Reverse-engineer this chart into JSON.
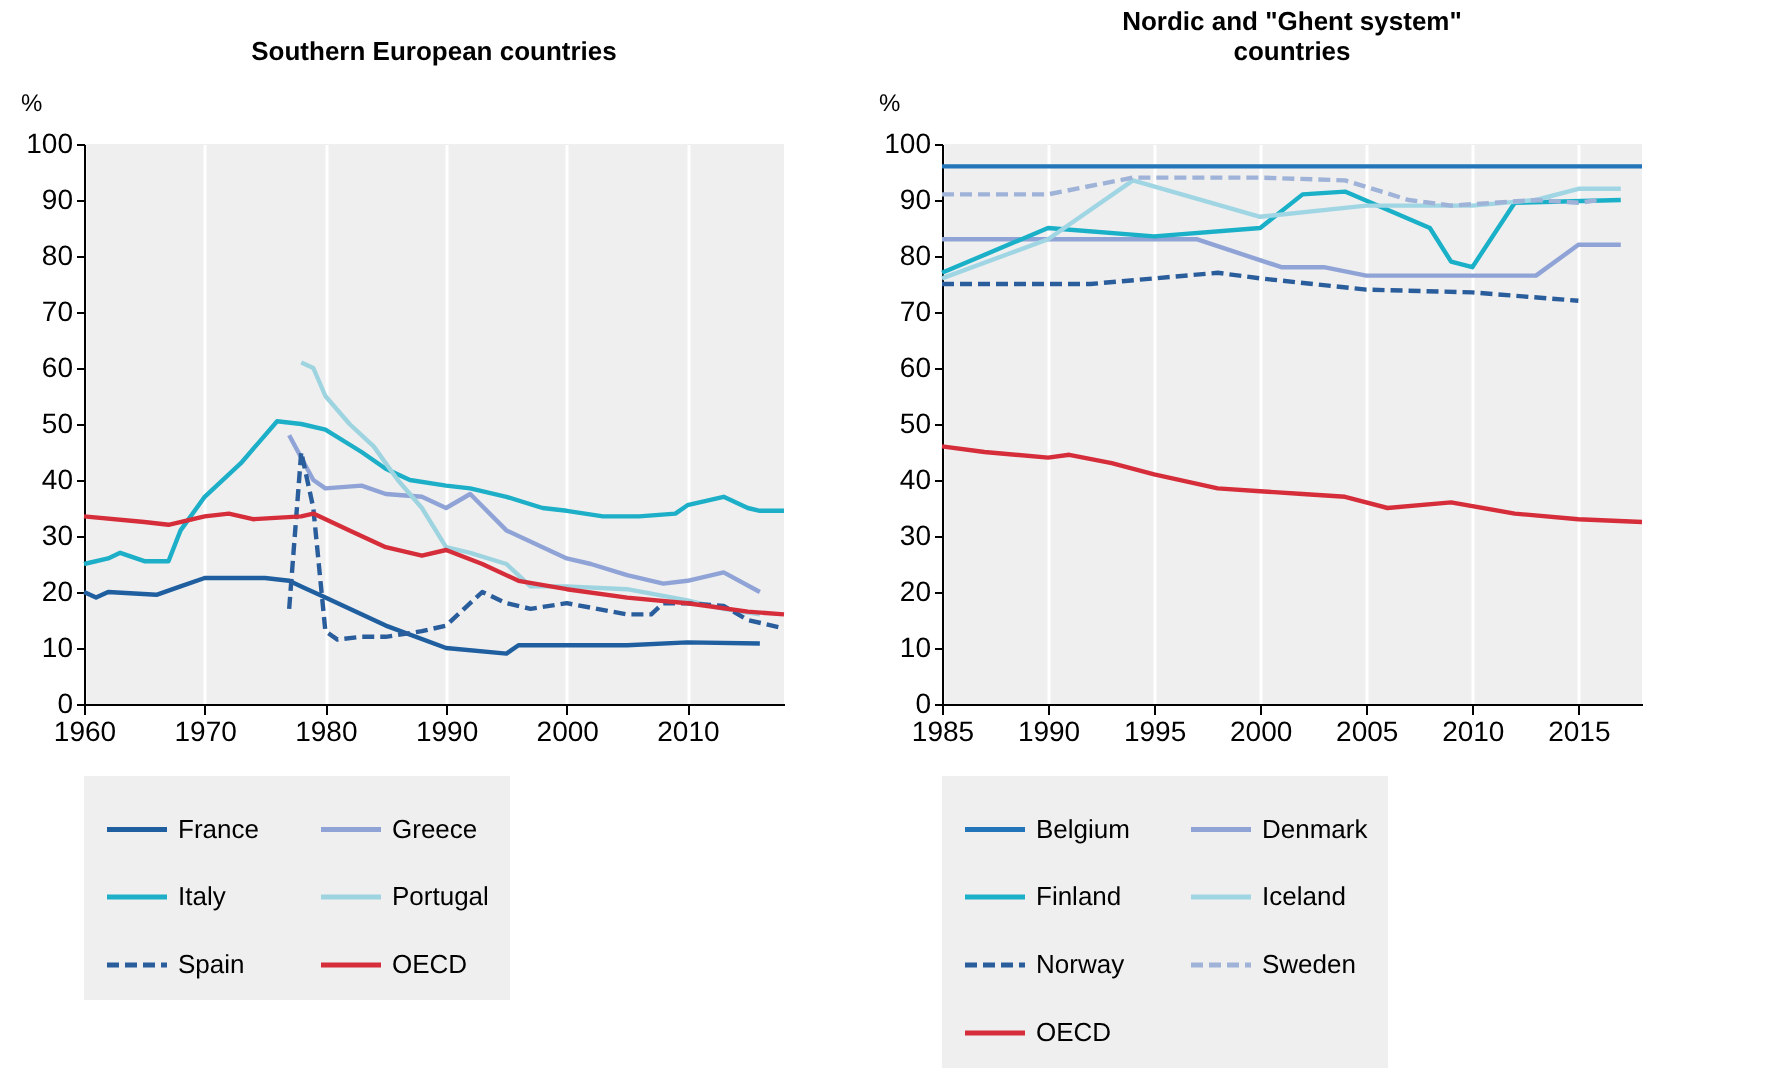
{
  "chart_data": [
    {
      "type": "line",
      "title": "Southern European countries",
      "ylabel": "%",
      "xlim": [
        1960,
        2018
      ],
      "xticks": [
        1960,
        1970,
        1980,
        1990,
        2000,
        2010
      ],
      "ylim": [
        0,
        100
      ],
      "yticks": [
        0,
        10,
        20,
        30,
        40,
        50,
        60,
        70,
        80,
        90,
        100
      ],
      "grid": "x",
      "legend": "bottom",
      "marker": "none",
      "series": [
        {
          "name": "France",
          "color": "#1f5fa0",
          "line_style": "solid",
          "x": [
            1960,
            1961,
            1962,
            1966,
            1968,
            1970,
            1975,
            1977,
            1978,
            1980,
            1985,
            1990,
            1995,
            1996,
            2000,
            2005,
            2010,
            2016
          ],
          "values": [
            20,
            19,
            20,
            19.5,
            21,
            22.5,
            22.5,
            22,
            21,
            19,
            14,
            10,
            9,
            10.5,
            10.5,
            10.5,
            11,
            10.8
          ]
        },
        {
          "name": "Greece",
          "color": "#8fa3d6",
          "line_style": "solid",
          "x": [
            1977,
            1979,
            1980,
            1983,
            1985,
            1988,
            1990,
            1992,
            1995,
            2000,
            2002,
            2005,
            2008,
            2010,
            2013,
            2016
          ],
          "values": [
            48,
            40,
            38.5,
            39,
            37.5,
            37,
            35,
            37.5,
            31,
            26,
            25,
            23,
            21.5,
            22,
            23.5,
            20
          ]
        },
        {
          "name": "Italy",
          "color": "#1cafc7",
          "line_style": "solid",
          "x": [
            1960,
            1962,
            1963,
            1965,
            1967,
            1968,
            1970,
            1973,
            1976,
            1978,
            1980,
            1983,
            1985,
            1987,
            1990,
            1992,
            1995,
            1998,
            2000,
            2003,
            2006,
            2009,
            2010,
            2013,
            2015,
            2016,
            2018
          ],
          "values": [
            25,
            26,
            27,
            25.5,
            25.5,
            31,
            37,
            43,
            50.5,
            50,
            49,
            45,
            42,
            40,
            39,
            38.5,
            37,
            35,
            34.5,
            33.5,
            33.5,
            34,
            35.5,
            37,
            35,
            34.5,
            34.5
          ]
        },
        {
          "name": "Portugal",
          "color": "#9ed4e0",
          "line_style": "solid",
          "x": [
            1978,
            1979,
            1980,
            1982,
            1984,
            1986,
            1988,
            1990,
            1992,
            1995,
            1997,
            2000,
            2005,
            2010,
            2013,
            2016
          ],
          "values": [
            61,
            60,
            55,
            50,
            46,
            40,
            35,
            28,
            27,
            25,
            21,
            21,
            20.5,
            18.5,
            17,
            16
          ]
        },
        {
          "name": "Spain",
          "color": "#2a5d9c",
          "line_style": "dashed",
          "x": [
            1977,
            1978,
            1979,
            1980,
            1981,
            1983,
            1985,
            1988,
            1990,
            1992,
            1993,
            1995,
            1997,
            2000,
            2005,
            2007,
            2008,
            2010,
            2013,
            2015,
            2018
          ],
          "values": [
            17,
            45,
            35,
            13,
            11.5,
            12,
            12,
            13,
            14,
            18,
            20,
            18,
            17,
            18,
            16,
            16,
            18,
            18,
            17.5,
            15,
            13.5
          ]
        },
        {
          "name": "OECD",
          "color": "#d62d3a",
          "line_style": "solid",
          "x": [
            1960,
            1965,
            1967,
            1970,
            1972,
            1974,
            1978,
            1979,
            1982,
            1985,
            1988,
            1990,
            1993,
            1996,
            2000,
            2005,
            2010,
            2015,
            2018
          ],
          "values": [
            33.5,
            32.5,
            32,
            33.5,
            34,
            33,
            33.5,
            34,
            31,
            28,
            26.5,
            27.5,
            25,
            22,
            20.5,
            19,
            18,
            16.5,
            16
          ]
        }
      ]
    },
    {
      "type": "line",
      "title": "Nordic and \"Ghent system\" countries",
      "ylabel": "%",
      "xlim": [
        1985,
        2018
      ],
      "xticks": [
        1985,
        1990,
        1995,
        2000,
        2005,
        2010,
        2015
      ],
      "ylim": [
        0,
        100
      ],
      "yticks": [
        0,
        10,
        20,
        30,
        40,
        50,
        60,
        70,
        80,
        90,
        100
      ],
      "grid": "x",
      "legend": "bottom",
      "marker": "none",
      "series": [
        {
          "name": "Belgium",
          "color": "#2175b8",
          "line_style": "solid",
          "x": [
            1985,
            2018
          ],
          "values": [
            96,
            96
          ]
        },
        {
          "name": "Denmark",
          "color": "#8fa3d6",
          "line_style": "solid",
          "x": [
            1985,
            1990,
            1995,
            1997,
            2001,
            2003,
            2005,
            2010,
            2013,
            2015,
            2017
          ],
          "values": [
            83,
            83,
            83,
            83,
            78,
            78,
            76.5,
            76.5,
            76.5,
            82,
            82
          ]
        },
        {
          "name": "Finland",
          "color": "#1ab0c8",
          "line_style": "solid",
          "x": [
            1985,
            1990,
            1995,
            2000,
            2002,
            2004,
            2008,
            2009,
            2010,
            2012,
            2017
          ],
          "values": [
            77,
            85,
            83.5,
            85,
            91,
            91.5,
            85,
            79,
            78,
            89.5,
            90
          ]
        },
        {
          "name": "Iceland",
          "color": "#a0d6e4",
          "line_style": "solid",
          "x": [
            1985,
            1990,
            1994,
            2000,
            2005,
            2010,
            2013,
            2015,
            2017
          ],
          "values": [
            76,
            83,
            93.5,
            87,
            89,
            89,
            90,
            92,
            92
          ]
        },
        {
          "name": "Norway",
          "color": "#2a5d9c",
          "line_style": "dashed",
          "x": [
            1985,
            1992,
            1998,
            2000,
            2005,
            2010,
            2015
          ],
          "values": [
            75,
            75,
            77,
            76,
            74,
            73.5,
            72
          ]
        },
        {
          "name": "Sweden",
          "color": "#9fb3d8",
          "line_style": "dashed",
          "x": [
            1985,
            1990,
            1994,
            2000,
            2004,
            2007,
            2009,
            2013,
            2015,
            2016
          ],
          "values": [
            91,
            91,
            94,
            94,
            93.5,
            90,
            89,
            90,
            89.5,
            90
          ]
        },
        {
          "name": "OECD",
          "color": "#d62d3a",
          "line_style": "solid",
          "x": [
            1985,
            1987,
            1990,
            1991,
            1993,
            1995,
            1998,
            2000,
            2002,
            2004,
            2006,
            2009,
            2012,
            2015,
            2018
          ],
          "values": [
            46,
            45,
            44,
            44.5,
            43,
            41,
            38.5,
            38,
            37.5,
            37,
            35,
            36,
            34,
            33,
            32.5
          ]
        }
      ]
    }
  ]
}
